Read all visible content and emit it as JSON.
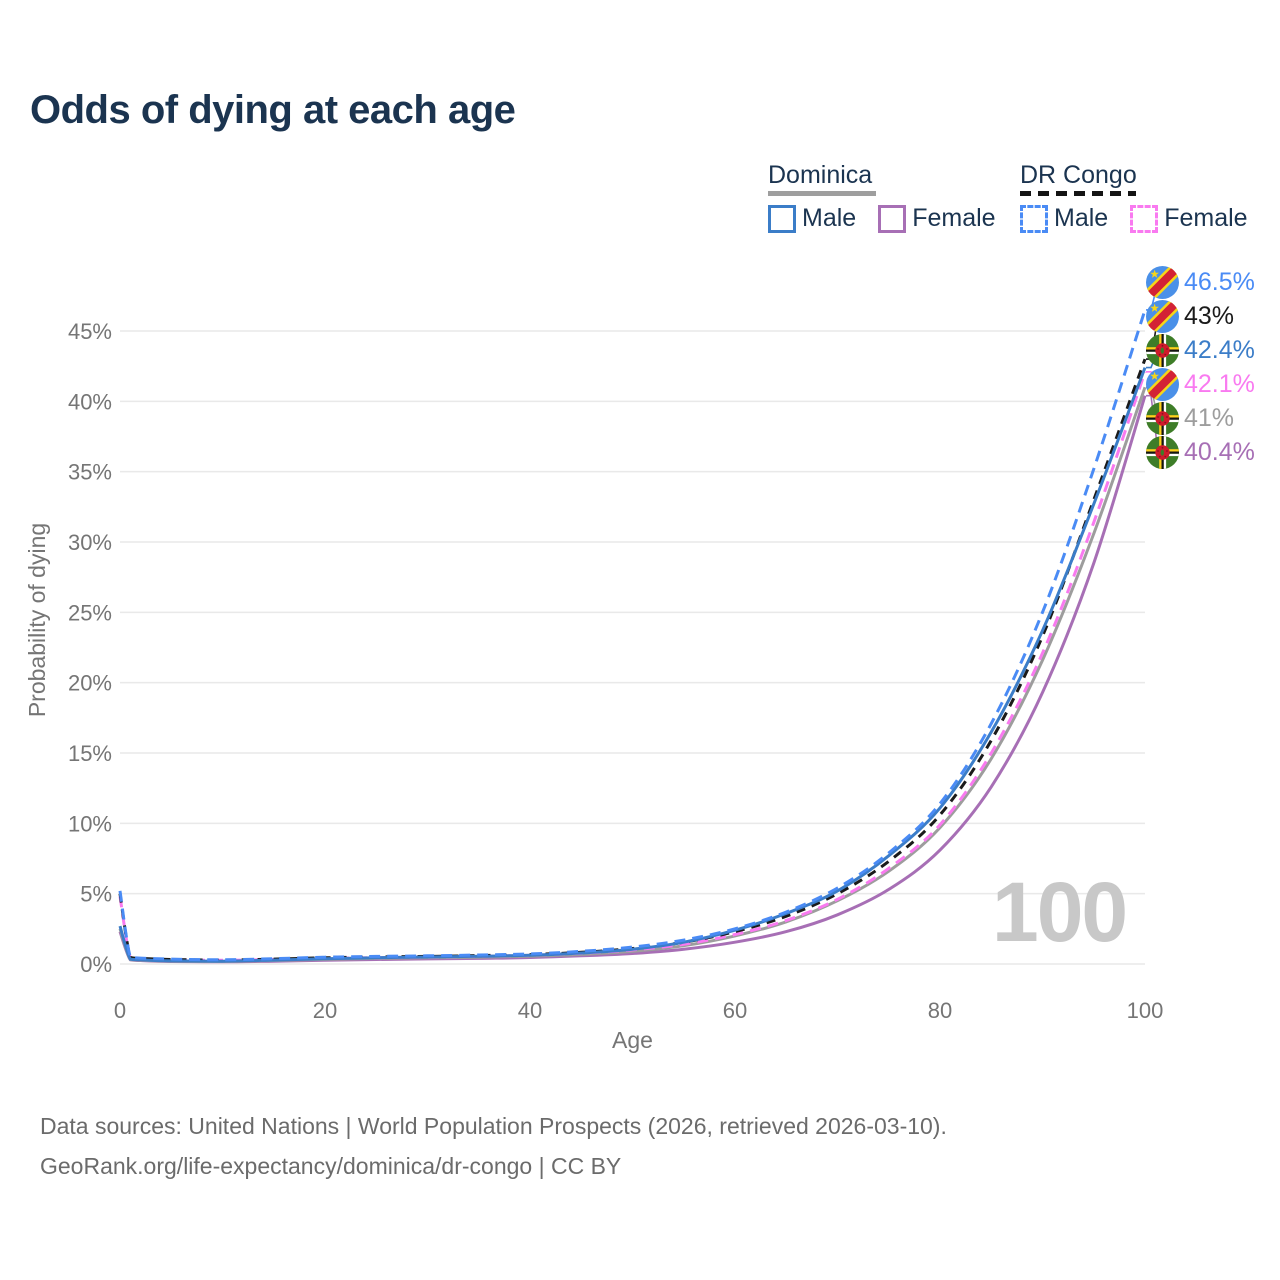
{
  "title": "Odds of dying at each age",
  "legend": {
    "groups": [
      {
        "name": "Dominica",
        "line_style": "solid",
        "underline_color": "#9e9e9e",
        "entries": [
          {
            "label": "Male",
            "color": "#3b7dc8"
          },
          {
            "label": "Female",
            "color": "#a76fb5"
          }
        ]
      },
      {
        "name": "DR Congo",
        "line_style": "dashed",
        "underline_color": "#141414",
        "entries": [
          {
            "label": "Male",
            "color": "#4a8bf5"
          },
          {
            "label": "Female",
            "color": "#f97af0"
          }
        ]
      }
    ]
  },
  "chart_data": {
    "type": "line",
    "title": "Odds of dying at each age",
    "xlabel": "Age",
    "ylabel": "Probability of dying",
    "x_ticks": [
      0,
      20,
      40,
      60,
      80,
      100
    ],
    "y_ticks": [
      0,
      5,
      10,
      15,
      20,
      25,
      30,
      35,
      40,
      45
    ],
    "y_tick_suffix": "%",
    "xlim": [
      0,
      100
    ],
    "ylim": [
      0,
      48
    ],
    "grid": true,
    "legend_position": "top-right",
    "x": [
      0,
      1,
      2,
      5,
      10,
      15,
      20,
      25,
      30,
      35,
      40,
      45,
      50,
      55,
      60,
      65,
      70,
      75,
      80,
      85,
      90,
      95,
      100
    ],
    "series": [
      {
        "id": "dom_female",
        "name": "Dominica Female",
        "color": "#a76fb5",
        "dash": false,
        "end_label": "40.4%",
        "values": [
          2.3,
          0.3,
          0.25,
          0.18,
          0.16,
          0.2,
          0.27,
          0.32,
          0.36,
          0.4,
          0.46,
          0.58,
          0.75,
          1.05,
          1.55,
          2.3,
          3.5,
          5.3,
          8.1,
          12.6,
          19.3,
          28.5,
          40.4
        ]
      },
      {
        "id": "dom_both",
        "name": "Dominica Both sexes",
        "color": "#9d9d9d",
        "dash": false,
        "end_label": "41%",
        "values": [
          2.5,
          0.32,
          0.27,
          0.2,
          0.18,
          0.25,
          0.33,
          0.4,
          0.44,
          0.48,
          0.55,
          0.68,
          0.9,
          1.3,
          2.0,
          3.0,
          4.5,
          6.6,
          9.7,
          14.6,
          21.6,
          30.6,
          41.0
        ]
      },
      {
        "id": "drc_female",
        "name": "DR Congo Female",
        "color": "#f97af0",
        "dash": true,
        "end_label": "42.1%",
        "values": [
          4.8,
          0.44,
          0.37,
          0.3,
          0.26,
          0.32,
          0.4,
          0.45,
          0.49,
          0.55,
          0.62,
          0.77,
          1.0,
          1.4,
          2.1,
          3.1,
          4.6,
          6.8,
          9.9,
          15.0,
          22.1,
          31.4,
          42.1
        ]
      },
      {
        "id": "drc_both",
        "name": "DR Congo Both sexes",
        "color": "#1a1a1a",
        "dash": true,
        "end_label": "43%",
        "values": [
          5.0,
          0.47,
          0.4,
          0.32,
          0.28,
          0.35,
          0.44,
          0.5,
          0.54,
          0.6,
          0.67,
          0.83,
          1.1,
          1.55,
          2.3,
          3.4,
          5.0,
          7.3,
          10.6,
          15.9,
          23.3,
          33.0,
          43.0
        ]
      },
      {
        "id": "dom_male",
        "name": "Dominica Male",
        "color": "#3b7dc8",
        "dash": false,
        "end_label": "42.4%",
        "values": [
          2.7,
          0.35,
          0.3,
          0.22,
          0.2,
          0.28,
          0.38,
          0.45,
          0.5,
          0.55,
          0.62,
          0.78,
          1.05,
          1.55,
          2.4,
          3.6,
          5.2,
          7.7,
          11.1,
          16.5,
          23.7,
          32.7,
          42.4
        ]
      },
      {
        "id": "drc_male",
        "name": "DR Congo Male",
        "color": "#4a8bf5",
        "dash": true,
        "end_label": "46.5%",
        "values": [
          5.2,
          0.5,
          0.42,
          0.35,
          0.3,
          0.38,
          0.48,
          0.54,
          0.58,
          0.64,
          0.72,
          0.9,
          1.2,
          1.7,
          2.5,
          3.7,
          5.4,
          7.9,
          11.4,
          17.1,
          25.0,
          35.2,
          46.5
        ]
      }
    ],
    "end_labels": [
      {
        "text": "46.5%",
        "color": "#4a8bf5",
        "flag": "dr-congo",
        "series_id": "drc_male"
      },
      {
        "text": "43%",
        "color": "#1a1a1a",
        "flag": "dr-congo",
        "series_id": "drc_both"
      },
      {
        "text": "42.4%",
        "color": "#3b7dc8",
        "flag": "dominica",
        "series_id": "dom_male"
      },
      {
        "text": "42.1%",
        "color": "#f97af0",
        "flag": "dr-congo",
        "series_id": "drc_female"
      },
      {
        "text": "41%",
        "color": "#9d9d9d",
        "flag": "dominica",
        "series_id": "dom_both"
      },
      {
        "text": "40.4%",
        "color": "#a76fb5",
        "flag": "dominica",
        "series_id": "dom_female"
      }
    ]
  },
  "watermark": "100",
  "footer": {
    "line1": "Data sources: United Nations | World Population Prospects (2026, retrieved 2026-03-10).",
    "line2": "GeoRank.org/life-expectancy/dominica/dr-congo | CC BY"
  }
}
